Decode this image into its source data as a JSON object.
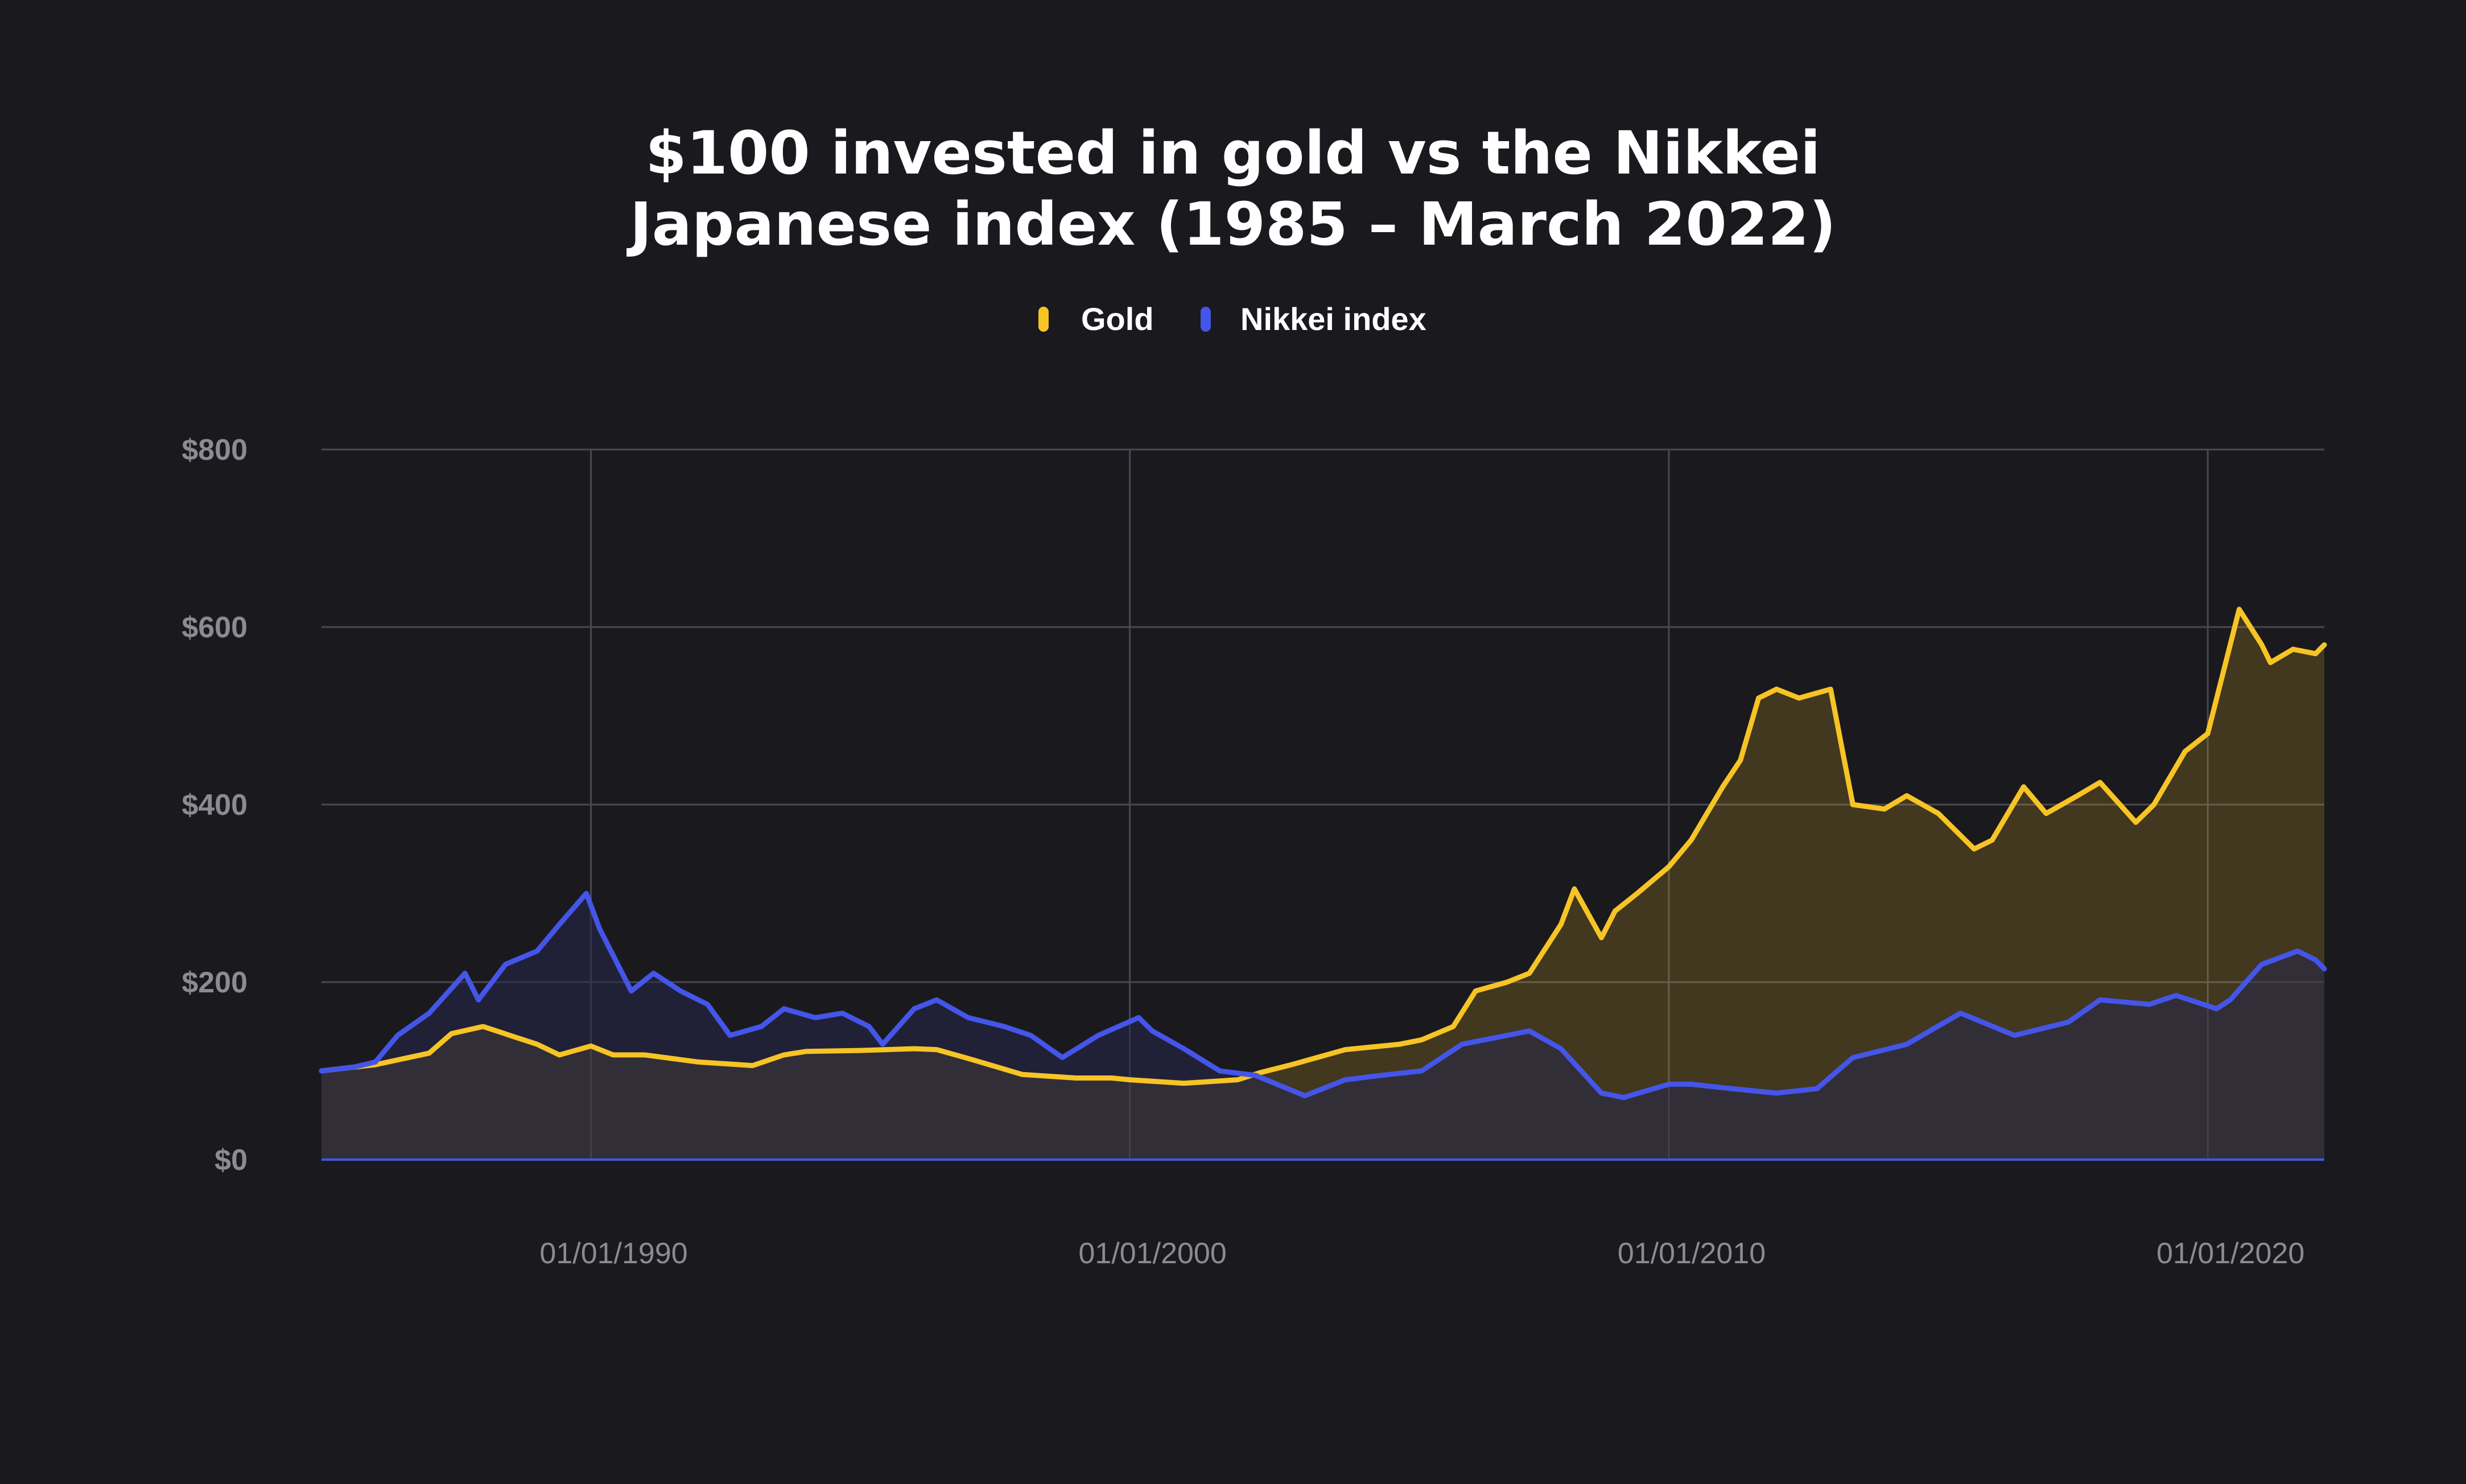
{
  "chart_data": {
    "type": "area",
    "title_lines": [
      "$100 invested in gold vs the Nikkei",
      "Japanese index (1985 – March 2022)"
    ],
    "xlabel": "",
    "ylabel": "",
    "ylim": [
      0,
      800
    ],
    "xlim": [
      "1985-01-01",
      "2022-03-01"
    ],
    "grid": true,
    "legend_position": "top-center",
    "y_ticks": [
      {
        "value": 800,
        "label": "$800"
      },
      {
        "value": 600,
        "label": "$600"
      },
      {
        "value": 400,
        "label": "$400"
      },
      {
        "value": 200,
        "label": "$200"
      },
      {
        "value": 0,
        "label": "$0"
      }
    ],
    "x_ticks": [
      {
        "value": "1990-01-01",
        "label": "01/01/1990"
      },
      {
        "value": "2000-01-01",
        "label": "01/01/2000"
      },
      {
        "value": "2010-01-01",
        "label": "01/01/2010"
      },
      {
        "value": "2020-01-01",
        "label": "01/01/2020"
      }
    ],
    "series": [
      {
        "name": "Gold",
        "color": "#f7c425",
        "fill": "#f7c425",
        "points": [
          [
            "1985-01-01",
            100
          ],
          [
            "1986-01-01",
            107
          ],
          [
            "1987-01-01",
            120
          ],
          [
            "1987-06-01",
            142
          ],
          [
            "1988-01-01",
            150
          ],
          [
            "1988-07-01",
            140
          ],
          [
            "1989-01-01",
            130
          ],
          [
            "1989-06-01",
            118
          ],
          [
            "1990-01-01",
            128
          ],
          [
            "1990-06-01",
            118
          ],
          [
            "1991-01-01",
            118
          ],
          [
            "1992-01-01",
            110
          ],
          [
            "1993-01-01",
            106
          ],
          [
            "1993-08-01",
            118
          ],
          [
            "1994-01-01",
            122
          ],
          [
            "1995-01-01",
            123
          ],
          [
            "1996-01-01",
            125
          ],
          [
            "1996-06-01",
            124
          ],
          [
            "1997-01-01",
            114
          ],
          [
            "1998-01-01",
            96
          ],
          [
            "1999-01-01",
            92
          ],
          [
            "1999-09-01",
            92
          ],
          [
            "2000-01-01",
            90
          ],
          [
            "2001-01-01",
            86
          ],
          [
            "2002-01-01",
            90
          ],
          [
            "2002-06-01",
            98
          ],
          [
            "2003-01-01",
            107
          ],
          [
            "2004-01-01",
            124
          ],
          [
            "2005-01-01",
            130
          ],
          [
            "2005-06-01",
            135
          ],
          [
            "2006-01-01",
            150
          ],
          [
            "2006-06-01",
            190
          ],
          [
            "2007-01-01",
            200
          ],
          [
            "2007-06-01",
            210
          ],
          [
            "2008-01-01",
            265
          ],
          [
            "2008-04-01",
            305
          ],
          [
            "2008-10-01",
            250
          ],
          [
            "2009-01-01",
            280
          ],
          [
            "2009-06-01",
            300
          ],
          [
            "2010-01-01",
            330
          ],
          [
            "2010-06-01",
            360
          ],
          [
            "2011-01-01",
            420
          ],
          [
            "2011-05-01",
            450
          ],
          [
            "2011-09-01",
            520
          ],
          [
            "2012-01-01",
            530
          ],
          [
            "2012-06-01",
            520
          ],
          [
            "2013-01-01",
            530
          ],
          [
            "2013-06-01",
            400
          ],
          [
            "2014-01-01",
            395
          ],
          [
            "2014-06-01",
            410
          ],
          [
            "2015-01-01",
            390
          ],
          [
            "2015-09-01",
            350
          ],
          [
            "2016-01-01",
            360
          ],
          [
            "2016-08-01",
            420
          ],
          [
            "2017-01-01",
            390
          ],
          [
            "2017-08-01",
            410
          ],
          [
            "2018-01-01",
            425
          ],
          [
            "2018-09-01",
            380
          ],
          [
            "2019-01-01",
            400
          ],
          [
            "2019-08-01",
            460
          ],
          [
            "2020-01-01",
            480
          ],
          [
            "2020-08-01",
            620
          ],
          [
            "2021-01-01",
            580
          ],
          [
            "2021-03-01",
            560
          ],
          [
            "2021-08-01",
            575
          ],
          [
            "2022-01-01",
            570
          ],
          [
            "2022-03-01",
            580
          ]
        ]
      },
      {
        "name": "Nikkei index",
        "color": "#4455e8",
        "fill": "#26284a",
        "points": [
          [
            "1985-01-01",
            100
          ],
          [
            "1985-08-01",
            104
          ],
          [
            "1986-01-01",
            110
          ],
          [
            "1986-06-01",
            140
          ],
          [
            "1987-01-01",
            165
          ],
          [
            "1987-09-01",
            210
          ],
          [
            "1987-12-01",
            180
          ],
          [
            "1988-06-01",
            220
          ],
          [
            "1989-01-01",
            235
          ],
          [
            "1989-06-01",
            265
          ],
          [
            "1989-12-01",
            300
          ],
          [
            "1990-03-01",
            260
          ],
          [
            "1990-10-01",
            190
          ],
          [
            "1991-03-01",
            210
          ],
          [
            "1991-09-01",
            190
          ],
          [
            "1992-03-01",
            175
          ],
          [
            "1992-08-01",
            140
          ],
          [
            "1993-03-01",
            150
          ],
          [
            "1993-08-01",
            170
          ],
          [
            "1994-03-01",
            160
          ],
          [
            "1994-09-01",
            165
          ],
          [
            "1995-03-01",
            150
          ],
          [
            "1995-06-01",
            130
          ],
          [
            "1996-01-01",
            170
          ],
          [
            "1996-06-01",
            180
          ],
          [
            "1997-01-01",
            160
          ],
          [
            "1997-09-01",
            150
          ],
          [
            "1998-03-01",
            140
          ],
          [
            "1998-10-01",
            115
          ],
          [
            "1999-06-01",
            140
          ],
          [
            "2000-03-01",
            160
          ],
          [
            "2000-06-01",
            145
          ],
          [
            "2001-01-01",
            125
          ],
          [
            "2001-09-01",
            100
          ],
          [
            "2002-05-01",
            95
          ],
          [
            "2003-04-01",
            72
          ],
          [
            "2004-01-01",
            90
          ],
          [
            "2004-09-01",
            95
          ],
          [
            "2005-06-01",
            100
          ],
          [
            "2006-03-01",
            130
          ],
          [
            "2007-01-01",
            140
          ],
          [
            "2007-06-01",
            145
          ],
          [
            "2008-01-01",
            125
          ],
          [
            "2008-10-01",
            75
          ],
          [
            "2009-03-01",
            70
          ],
          [
            "2010-01-01",
            85
          ],
          [
            "2010-06-01",
            85
          ],
          [
            "2011-03-01",
            80
          ],
          [
            "2012-01-01",
            75
          ],
          [
            "2012-10-01",
            80
          ],
          [
            "2013-06-01",
            115
          ],
          [
            "2014-06-01",
            130
          ],
          [
            "2015-06-01",
            165
          ],
          [
            "2016-06-01",
            140
          ],
          [
            "2017-06-01",
            155
          ],
          [
            "2018-01-01",
            180
          ],
          [
            "2018-12-01",
            175
          ],
          [
            "2019-06-01",
            185
          ],
          [
            "2020-03-01",
            170
          ],
          [
            "2020-06-01",
            180
          ],
          [
            "2021-01-01",
            220
          ],
          [
            "2021-09-01",
            235
          ],
          [
            "2022-01-01",
            225
          ],
          [
            "2022-03-01",
            215
          ]
        ]
      }
    ]
  }
}
